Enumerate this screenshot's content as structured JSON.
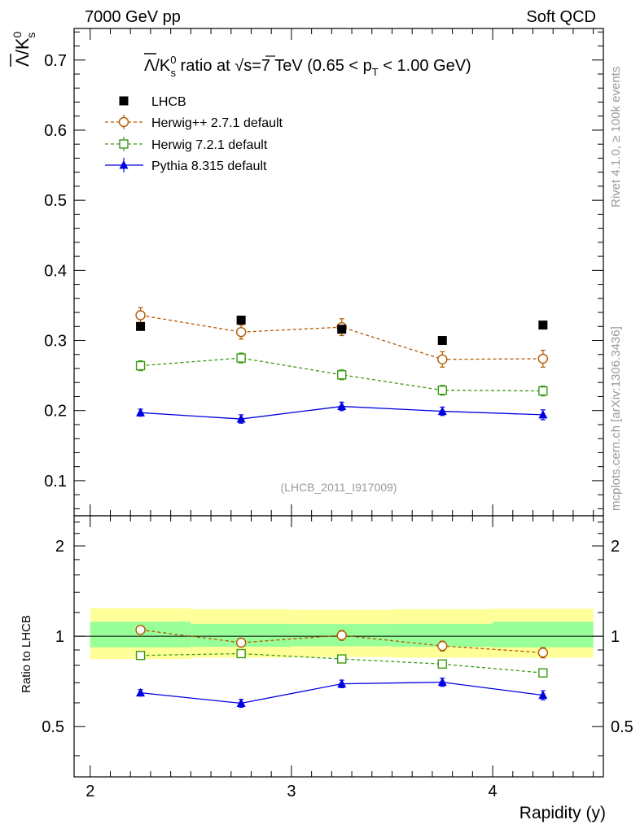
{
  "header": {
    "left": "7000 GeV pp",
    "right": "Soft QCD"
  },
  "side_labels": {
    "rivet": "Rivet 4.1.0, ≥ 100k events",
    "mcplots": "mcplots.cern.ch [arXiv:1306.3436]"
  },
  "colors": {
    "lhcb": "#000000",
    "herwigpp": "#b35900",
    "herwig7": "#3c9a14",
    "pythia": "#0000e0",
    "band_outer": "#ffff99",
    "band_inner": "#99ff99",
    "watermark": "#999999"
  },
  "chart_data": [
    {
      "type": "scatter",
      "panel": "main",
      "title": "Λ̅/K⁰s ratio at √s=7 TeV (0.65 < pT < 1.00 GeV)",
      "title_parts": {
        "lambda": "Λ",
        "k": "/K",
        "k_sup": "0",
        "k_sub": "s",
        "mid": " ratio at ",
        "sqrt": "√",
        "s_val": "s=7 TeV (0.65 < p",
        "pt_sub": "T",
        "tail": " < 1.00 GeV)"
      },
      "ylabel_parts": {
        "lambda": "Λ",
        "k": "/K",
        "k_sup": "0",
        "k_sub": "s"
      },
      "xlabel": "",
      "watermark": "(LHCB_2011_I917009)",
      "xlim": [
        1.92,
        4.55
      ],
      "ylim": [
        0.05,
        0.745
      ],
      "yticks": [
        0.1,
        0.2,
        0.3,
        0.4,
        0.5,
        0.6,
        0.7
      ],
      "ytick_labels": [
        "0.1",
        "0.2",
        "0.3",
        "0.4",
        "0.5",
        "0.6",
        "0.7"
      ],
      "x": [
        2.25,
        2.75,
        3.25,
        3.75,
        4.25
      ],
      "series": [
        {
          "key": "lhcb",
          "name": "LHCB",
          "marker": "square-filled",
          "line": "none",
          "values": [
            0.32,
            0.329,
            0.316,
            0.3,
            0.322
          ],
          "errors": [
            0,
            0,
            0,
            0,
            0
          ]
        },
        {
          "key": "herwigpp",
          "name": "Herwig++ 2.7.1 default",
          "marker": "circle-open",
          "line": "dashed",
          "values": [
            0.336,
            0.312,
            0.319,
            0.273,
            0.274
          ],
          "errors": [
            0.011,
            0.01,
            0.012,
            0.011,
            0.012
          ]
        },
        {
          "key": "herwig7",
          "name": "Herwig 7.2.1 default",
          "marker": "square-open",
          "line": "dashed",
          "values": [
            0.264,
            0.275,
            0.251,
            0.229,
            0.228
          ],
          "errors": [
            0.007,
            0.007,
            0.007,
            0.007,
            0.007
          ]
        },
        {
          "key": "pythia",
          "name": "Pythia 8.315 default",
          "marker": "triangle-filled",
          "line": "solid",
          "values": [
            0.197,
            0.188,
            0.206,
            0.199,
            0.194
          ],
          "errors": [
            0.005,
            0.006,
            0.006,
            0.006,
            0.007
          ]
        }
      ]
    },
    {
      "type": "scatter",
      "panel": "ratio",
      "title": "",
      "ylabel": "Ratio to LHCB",
      "xlabel": "Rapidity (y)",
      "xlim": [
        1.92,
        4.55
      ],
      "ylim": [
        0.34,
        2.52
      ],
      "scale": "log",
      "yticks": [
        0.5,
        1,
        2
      ],
      "ytick_labels": [
        "0.5",
        "1",
        "2"
      ],
      "xticks": [
        2,
        3,
        4
      ],
      "xtick_labels": [
        "2",
        "3",
        "4"
      ],
      "x": [
        2.25,
        2.75,
        3.25,
        3.75,
        4.25
      ],
      "bands": {
        "bins": [
          [
            2.0,
            2.5
          ],
          [
            2.5,
            3.0
          ],
          [
            3.0,
            3.5
          ],
          [
            3.5,
            4.0
          ],
          [
            4.0,
            4.5
          ]
        ],
        "outer": [
          [
            0.84,
            1.24
          ],
          [
            0.848,
            1.23
          ],
          [
            0.852,
            1.225
          ],
          [
            0.848,
            1.23
          ],
          [
            0.848,
            1.235
          ]
        ],
        "inner": [
          [
            0.918,
            1.118
          ],
          [
            0.922,
            1.1
          ],
          [
            0.926,
            1.098
          ],
          [
            0.922,
            1.1
          ],
          [
            0.918,
            1.118
          ]
        ]
      },
      "series": [
        {
          "key": "herwigpp",
          "name": "Herwig++ 2.7.1 default",
          "marker": "circle-open",
          "line": "dashed",
          "values": [
            1.05,
            0.952,
            1.007,
            0.928,
            0.882
          ],
          "errors": [
            0.035,
            0.03,
            0.038,
            0.035,
            0.035
          ]
        },
        {
          "key": "herwig7",
          "name": "Herwig 7.2.1 default",
          "marker": "square-open",
          "line": "dashed",
          "values": [
            0.863,
            0.875,
            0.84,
            0.808,
            0.755
          ],
          "errors": [
            0.018,
            0.018,
            0.018,
            0.02,
            0.02
          ]
        },
        {
          "key": "pythia",
          "name": "Pythia 8.315 default",
          "marker": "triangle-filled",
          "line": "solid",
          "values": [
            0.648,
            0.598,
            0.694,
            0.703,
            0.636
          ],
          "errors": [
            0.016,
            0.018,
            0.02,
            0.022,
            0.022
          ]
        }
      ]
    }
  ]
}
